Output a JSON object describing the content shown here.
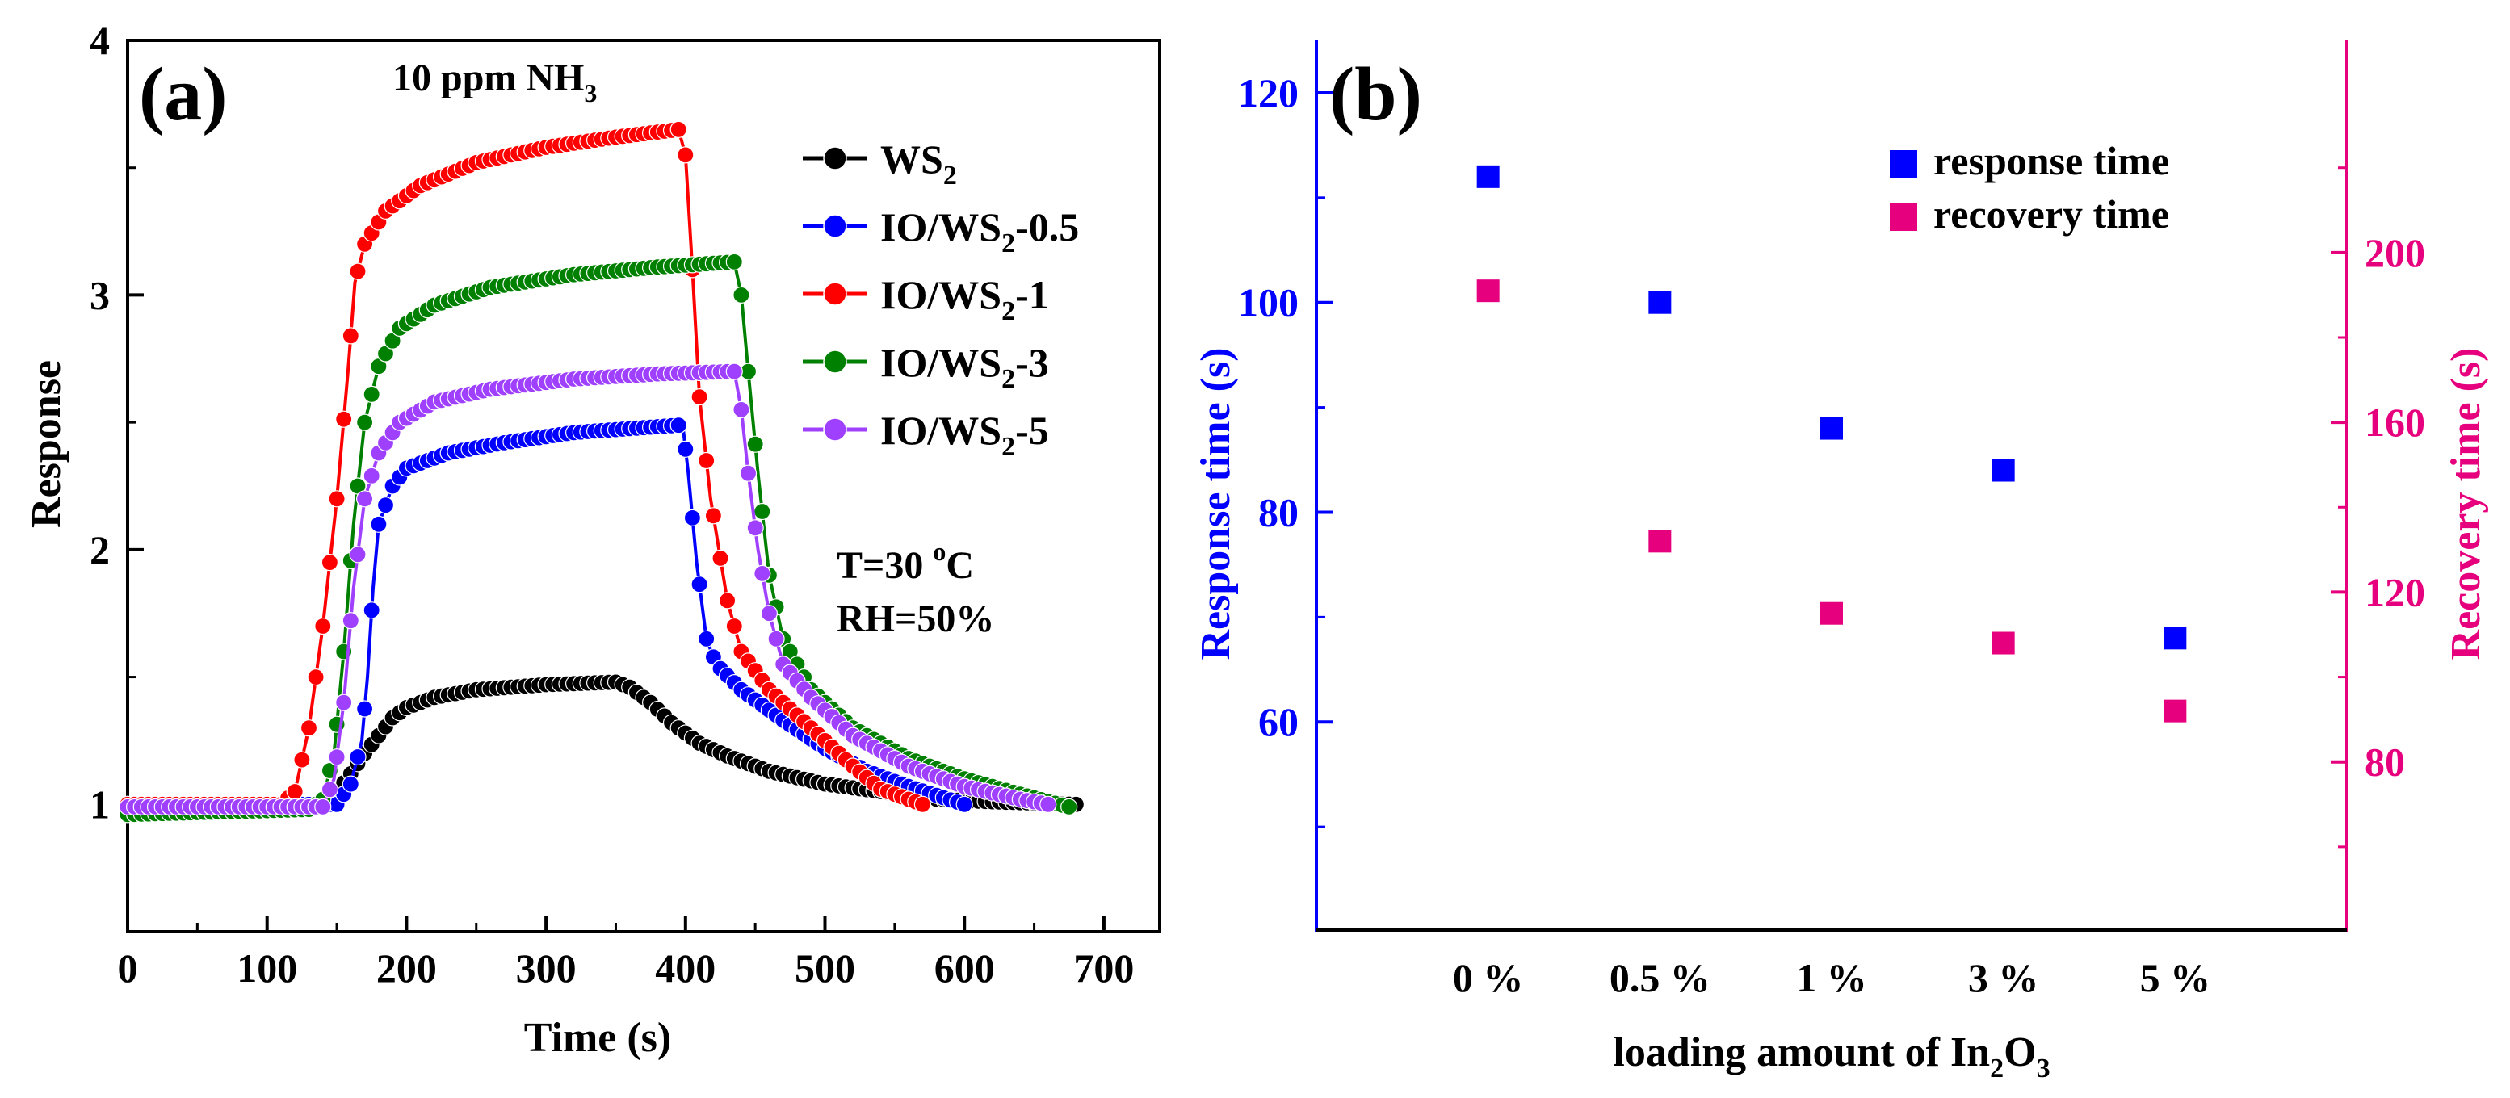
{
  "panel_a": {
    "label": "(a)",
    "condition": "10 ppm NH",
    "condition_sub": "3",
    "temperature_prefix": "T=30 ",
    "temperature_sup": "o",
    "temperature_suffix": "C",
    "humidity": "RH=50%",
    "chart_data": {
      "type": "line",
      "title": "10 ppm NH3",
      "xlabel": "Time (s)",
      "ylabel": "Response",
      "xlim": [
        0,
        740
      ],
      "ylim": [
        0.5,
        4
      ],
      "xticks": [
        0,
        100,
        200,
        300,
        400,
        500,
        600,
        700
      ],
      "yticks": [
        1,
        2,
        3,
        4
      ],
      "series": [
        {
          "name": "WS2",
          "label_main": "WS",
          "label_sub": "2",
          "label_tail": "",
          "color": "#000000",
          "points": [
            [
              0,
              1.0
            ],
            [
              140,
              1.0
            ],
            [
              150,
              1.05
            ],
            [
              160,
              1.12
            ],
            [
              170,
              1.2
            ],
            [
              180,
              1.27
            ],
            [
              190,
              1.34
            ],
            [
              200,
              1.38
            ],
            [
              220,
              1.42
            ],
            [
              250,
              1.45
            ],
            [
              300,
              1.47
            ],
            [
              350,
              1.48
            ],
            [
              360,
              1.46
            ],
            [
              375,
              1.4
            ],
            [
              390,
              1.32
            ],
            [
              410,
              1.24
            ],
            [
              430,
              1.19
            ],
            [
              460,
              1.13
            ],
            [
              500,
              1.08
            ],
            [
              540,
              1.05
            ],
            [
              580,
              1.02
            ],
            [
              620,
              1.01
            ],
            [
              680,
              1.0
            ]
          ]
        },
        {
          "name": "IO/WS2-0.5",
          "label_main": "IO/WS",
          "label_sub": "2",
          "label_tail": "-0.5",
          "color": "#0000ff",
          "points": [
            [
              0,
              1.0
            ],
            [
              150,
              1.0
            ],
            [
              160,
              1.08
            ],
            [
              168,
              1.25
            ],
            [
              172,
              1.5
            ],
            [
              176,
              1.85
            ],
            [
              180,
              2.1
            ],
            [
              190,
              2.25
            ],
            [
              200,
              2.32
            ],
            [
              230,
              2.38
            ],
            [
              270,
              2.42
            ],
            [
              320,
              2.46
            ],
            [
              398,
              2.49
            ],
            [
              402,
              2.3
            ],
            [
              408,
              1.95
            ],
            [
              415,
              1.65
            ],
            [
              422,
              1.55
            ],
            [
              440,
              1.45
            ],
            [
              470,
              1.33
            ],
            [
              500,
              1.22
            ],
            [
              530,
              1.13
            ],
            [
              560,
              1.07
            ],
            [
              600,
              1.0
            ]
          ]
        },
        {
          "name": "IO/WS2-1",
          "label_main": "IO/WS",
          "label_sub": "2",
          "label_tail": "-1",
          "color": "#ff0000",
          "points": [
            [
              0,
              1.0
            ],
            [
              110,
              1.0
            ],
            [
              120,
              1.05
            ],
            [
              130,
              1.3
            ],
            [
              140,
              1.7
            ],
            [
              150,
              2.2
            ],
            [
              158,
              2.7
            ],
            [
              163,
              3.05
            ],
            [
              170,
              3.2
            ],
            [
              185,
              3.33
            ],
            [
              210,
              3.43
            ],
            [
              250,
              3.52
            ],
            [
              300,
              3.58
            ],
            [
              350,
              3.62
            ],
            [
              395,
              3.65
            ],
            [
              400,
              3.55
            ],
            [
              405,
              3.1
            ],
            [
              410,
              2.6
            ],
            [
              418,
              2.2
            ],
            [
              430,
              1.8
            ],
            [
              440,
              1.6
            ],
            [
              460,
              1.45
            ],
            [
              480,
              1.35
            ],
            [
              500,
              1.25
            ],
            [
              520,
              1.15
            ],
            [
              540,
              1.06
            ],
            [
              570,
              1.0
            ]
          ]
        },
        {
          "name": "IO/WS2-3",
          "label_main": "IO/WS",
          "label_sub": "2",
          "label_tail": "-3",
          "color": "#008000",
          "points": [
            [
              0,
              0.96
            ],
            [
              130,
              0.98
            ],
            [
              140,
              1.02
            ],
            [
              148,
              1.2
            ],
            [
              155,
              1.6
            ],
            [
              162,
              2.1
            ],
            [
              170,
              2.5
            ],
            [
              180,
              2.72
            ],
            [
              195,
              2.87
            ],
            [
              220,
              2.96
            ],
            [
              260,
              3.03
            ],
            [
              320,
              3.08
            ],
            [
              380,
              3.11
            ],
            [
              435,
              3.13
            ],
            [
              440,
              3.0
            ],
            [
              445,
              2.7
            ],
            [
              452,
              2.3
            ],
            [
              460,
              1.9
            ],
            [
              470,
              1.65
            ],
            [
              490,
              1.45
            ],
            [
              520,
              1.3
            ],
            [
              560,
              1.18
            ],
            [
              600,
              1.1
            ],
            [
              640,
              1.04
            ],
            [
              675,
              0.99
            ]
          ]
        },
        {
          "name": "IO/WS2-5",
          "label_main": "IO/WS",
          "label_sub": "2",
          "label_tail": "-5",
          "color": "#a040ff",
          "points": [
            [
              0,
              0.99
            ],
            [
              140,
              0.99
            ],
            [
              148,
              1.1
            ],
            [
              155,
              1.4
            ],
            [
              162,
              1.85
            ],
            [
              170,
              2.2
            ],
            [
              180,
              2.38
            ],
            [
              195,
              2.5
            ],
            [
              220,
              2.58
            ],
            [
              260,
              2.63
            ],
            [
              320,
              2.67
            ],
            [
              380,
              2.69
            ],
            [
              435,
              2.7
            ],
            [
              440,
              2.55
            ],
            [
              445,
              2.3
            ],
            [
              452,
              2.0
            ],
            [
              460,
              1.75
            ],
            [
              470,
              1.55
            ],
            [
              490,
              1.42
            ],
            [
              520,
              1.27
            ],
            [
              560,
              1.15
            ],
            [
              600,
              1.07
            ],
            [
              640,
              1.02
            ],
            [
              660,
              1.0
            ]
          ]
        }
      ]
    }
  },
  "panel_b": {
    "label": "(b)",
    "xlabel_main": "loading amount of In",
    "xlabel_sub1": "2",
    "xlabel_mid": "O",
    "xlabel_sub2": "3",
    "left_ylabel": "Response time (s)",
    "right_ylabel": "Recovery time (s)",
    "left_color": "#0000ff",
    "right_color": "#e6007e",
    "chart_data": {
      "type": "scatter",
      "categories": [
        "0 %",
        "0.5 %",
        "1 %",
        "3 %",
        "5 %"
      ],
      "xlabel": "loading amount of In2O3",
      "ylabel_left": "Response time (s)",
      "ylabel_right": "Recovery time (s)",
      "ylim_left": [
        40,
        125
      ],
      "ylim_right": [
        40,
        250
      ],
      "yticks_left": [
        60,
        80,
        100,
        120
      ],
      "yticks_right": [
        80,
        120,
        160,
        200
      ],
      "series": [
        {
          "name": "response time",
          "axis": "left",
          "color": "#0000ff",
          "values": [
            112,
            100,
            88,
            84,
            68
          ]
        },
        {
          "name": "recovery time",
          "axis": "right",
          "color": "#e6007e",
          "values": [
            191,
            132,
            115,
            108,
            92
          ]
        }
      ]
    }
  }
}
